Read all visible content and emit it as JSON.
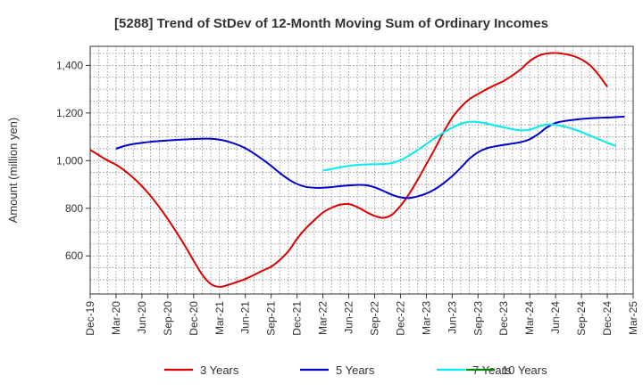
{
  "chart_data": {
    "type": "line",
    "title": "[5288]  Trend of StDev of 12-Month Moving Sum of Ordinary Incomes",
    "xlabel": "",
    "ylabel": "Amount (million yen)",
    "ylim": [
      440,
      1480
    ],
    "yticks": [
      600,
      800,
      1000,
      1200,
      1400
    ],
    "ytick_labels": [
      "600",
      "800",
      "1,000",
      "1,200",
      "1,400"
    ],
    "x_start": "Dec-19",
    "x_ticks": [
      "Dec-19",
      "Mar-20",
      "Jun-20",
      "Sep-20",
      "Dec-20",
      "Mar-21",
      "Jun-21",
      "Sep-21",
      "Dec-21",
      "Mar-22",
      "Jun-22",
      "Sep-22",
      "Dec-22",
      "Mar-23",
      "Jun-23",
      "Sep-23",
      "Dec-23",
      "Mar-24",
      "Jun-24",
      "Sep-24",
      "Dec-24",
      "Mar-25"
    ],
    "grid": true,
    "legend_position": "bottom",
    "series": [
      {
        "name": "3 Years",
        "color": "#dd0000",
        "start_month_index": 0,
        "values": [
          1045,
          1023,
          1001,
          983,
          958,
          928,
          893,
          852,
          806,
          755,
          700,
          642,
          580,
          521,
          482,
          470,
          478,
          490,
          503,
          520,
          538,
          555,
          583,
          620,
          672,
          715,
          750,
          782,
          802,
          815,
          818,
          805,
          785,
          768,
          760,
          773,
          810,
          860,
          920,
          985,
          1050,
          1120,
          1180,
          1225,
          1258,
          1280,
          1300,
          1318,
          1335,
          1358,
          1385,
          1418,
          1440,
          1450,
          1452,
          1448,
          1440,
          1425,
          1400,
          1360,
          1310
        ]
      },
      {
        "name": "5 Years",
        "color": "#0000cc",
        "start_month_index": 3,
        "values": [
          1050,
          1062,
          1070,
          1075,
          1079,
          1082,
          1085,
          1087,
          1089,
          1091,
          1092,
          1092,
          1088,
          1080,
          1068,
          1052,
          1030,
          1005,
          978,
          948,
          922,
          902,
          890,
          886,
          886,
          889,
          893,
          896,
          898,
          897,
          888,
          873,
          857,
          846,
          843,
          850,
          862,
          880,
          905,
          935,
          970,
          1008,
          1035,
          1052,
          1060,
          1066,
          1072,
          1078,
          1090,
          1112,
          1140,
          1158,
          1166,
          1171,
          1175,
          1178,
          1180,
          1181,
          1183,
          1185
        ]
      },
      {
        "name": "7 Years",
        "color": "#00eeee",
        "start_month_index": 27,
        "values": [
          958,
          965,
          972,
          978,
          982,
          984,
          985,
          986,
          990,
          1002,
          1022,
          1045,
          1070,
          1095,
          1118,
          1138,
          1155,
          1163,
          1162,
          1156,
          1147,
          1140,
          1132,
          1127,
          1130,
          1143,
          1152,
          1150,
          1143,
          1133,
          1120,
          1105,
          1090,
          1075,
          1062
        ]
      },
      {
        "name": "10 Years",
        "color": "#008800",
        "start_month_index": 0,
        "values": []
      }
    ]
  }
}
